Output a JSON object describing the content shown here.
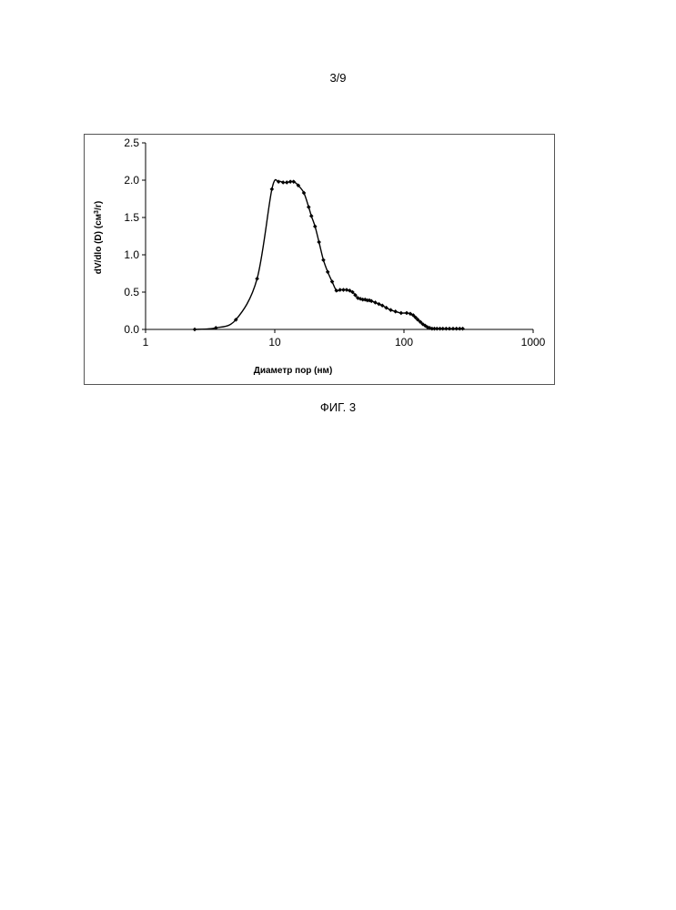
{
  "page": {
    "number": "3/9",
    "caption": "ФИГ. 3"
  },
  "chart_data": {
    "type": "line",
    "title": "",
    "xlabel": "Диаметр пор (нм)",
    "ylabel_main": "dV/dlo  (D) (см",
    "ylabel_sup": "3",
    "ylabel_tail": "/г)",
    "x_scale": "log",
    "xlim": [
      1,
      1000
    ],
    "ylim": [
      0,
      2.5
    ],
    "x_ticks": [
      1,
      10,
      100,
      1000
    ],
    "x_tick_labels": [
      "1",
      "10",
      "100",
      "1000"
    ],
    "y_ticks": [
      0,
      0.5,
      1.0,
      1.5,
      2.0,
      2.5
    ],
    "y_tick_labels": [
      "0.0",
      "0.5",
      "1.0",
      "1.5",
      "2.0",
      "2.5"
    ],
    "grid": false,
    "legend": false,
    "marker": "diamond",
    "line_color": "#000000",
    "series": [
      {
        "x": [
          2.4,
          3.5,
          5.0,
          7.3,
          9.5,
          10.7,
          11.6,
          12.4,
          13.2,
          14.0,
          15.2,
          16.8,
          18.3,
          19.2,
          20.5,
          22.0,
          23.8,
          25.7,
          27.8,
          30.0,
          32.0,
          34.0,
          36.0,
          38.0,
          40.0,
          42.0,
          44.0,
          46.0,
          48.0,
          50.0,
          52.0,
          54.0,
          56.0,
          60.0,
          64.0,
          68.0,
          73.0,
          79.0,
          86.0,
          95.0,
          105.0,
          112.0,
          118.0,
          123.0,
          128.0,
          134.0,
          140.0,
          146.0,
          152.0,
          158.0,
          165.0,
          172.0,
          180.0,
          190.0,
          200.0,
          212.0,
          225.0,
          240.0,
          255.0,
          270.0,
          285.0
        ],
        "y": [
          0.0,
          0.02,
          0.13,
          0.68,
          1.88,
          1.98,
          1.97,
          1.97,
          1.98,
          1.98,
          1.93,
          1.83,
          1.64,
          1.52,
          1.38,
          1.17,
          0.93,
          0.77,
          0.64,
          0.52,
          0.53,
          0.53,
          0.53,
          0.52,
          0.5,
          0.46,
          0.42,
          0.41,
          0.4,
          0.4,
          0.39,
          0.39,
          0.38,
          0.36,
          0.34,
          0.32,
          0.29,
          0.26,
          0.24,
          0.22,
          0.22,
          0.21,
          0.19,
          0.16,
          0.13,
          0.1,
          0.07,
          0.05,
          0.03,
          0.02,
          0.01,
          0.01,
          0.01,
          0.01,
          0.01,
          0.01,
          0.01,
          0.01,
          0.01,
          0.01,
          0.01
        ]
      }
    ]
  }
}
